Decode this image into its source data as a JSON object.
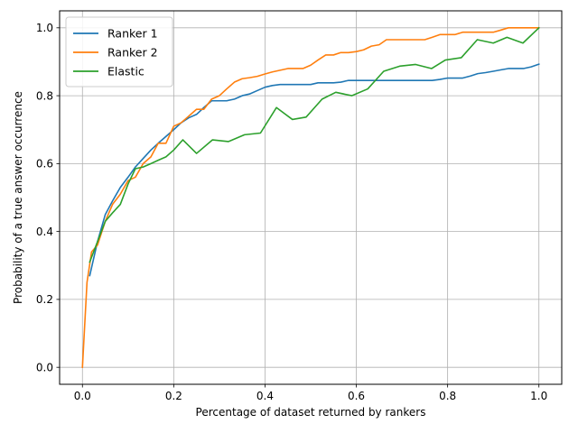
{
  "chart_data": {
    "type": "line",
    "title": "",
    "xlabel": "Percentage of dataset returned by rankers",
    "ylabel": "Probability of a true answer occurrence",
    "xlim": [
      -0.05,
      1.05
    ],
    "ylim": [
      -0.05,
      1.05
    ],
    "xticks": [
      0.0,
      0.2,
      0.4,
      0.6,
      0.8,
      1.0
    ],
    "yticks": [
      0.0,
      0.2,
      0.4,
      0.6,
      0.8,
      1.0
    ],
    "tick_labels_x": [
      "0.0",
      "0.2",
      "0.4",
      "0.6",
      "0.8",
      "1.0"
    ],
    "tick_labels_y": [
      "0.0",
      "0.2",
      "0.4",
      "0.6",
      "0.8",
      "1.0"
    ],
    "grid": true,
    "legend": "top-left",
    "series": [
      {
        "name": "Ranker 1",
        "color": "#1f77b4",
        "x": [
          0.016,
          0.033,
          0.05,
          0.066,
          0.083,
          0.1,
          0.116,
          0.133,
          0.15,
          0.166,
          0.183,
          0.2,
          0.216,
          0.233,
          0.25,
          0.266,
          0.283,
          0.3,
          0.316,
          0.333,
          0.35,
          0.366,
          0.383,
          0.4,
          0.416,
          0.433,
          0.45,
          0.466,
          0.483,
          0.5,
          0.516,
          0.533,
          0.55,
          0.566,
          0.583,
          0.6,
          0.616,
          0.633,
          0.65,
          0.666,
          0.683,
          0.7,
          0.716,
          0.733,
          0.75,
          0.766,
          0.783,
          0.8,
          0.816,
          0.833,
          0.85,
          0.866,
          0.883,
          0.9,
          0.916,
          0.933,
          0.95,
          0.966,
          0.983,
          1.0
        ],
        "y": [
          0.27,
          0.37,
          0.45,
          0.49,
          0.53,
          0.56,
          0.59,
          0.615,
          0.64,
          0.66,
          0.68,
          0.7,
          0.72,
          0.735,
          0.745,
          0.765,
          0.785,
          0.785,
          0.785,
          0.79,
          0.8,
          0.805,
          0.815,
          0.825,
          0.83,
          0.833,
          0.833,
          0.833,
          0.833,
          0.833,
          0.838,
          0.838,
          0.838,
          0.84,
          0.845,
          0.845,
          0.845,
          0.845,
          0.845,
          0.845,
          0.845,
          0.845,
          0.845,
          0.845,
          0.845,
          0.845,
          0.848,
          0.852,
          0.852,
          0.852,
          0.858,
          0.865,
          0.868,
          0.872,
          0.876,
          0.88,
          0.88,
          0.88,
          0.885,
          0.893
        ]
      },
      {
        "name": "Ranker 2",
        "color": "#ff7f0e",
        "x": [
          0.0,
          0.01,
          0.02,
          0.033,
          0.05,
          0.066,
          0.083,
          0.1,
          0.116,
          0.133,
          0.15,
          0.166,
          0.183,
          0.2,
          0.216,
          0.233,
          0.25,
          0.266,
          0.283,
          0.3,
          0.316,
          0.333,
          0.35,
          0.366,
          0.383,
          0.4,
          0.416,
          0.433,
          0.45,
          0.466,
          0.483,
          0.5,
          0.516,
          0.533,
          0.55,
          0.566,
          0.583,
          0.6,
          0.616,
          0.633,
          0.65,
          0.666,
          0.683,
          0.7,
          0.716,
          0.733,
          0.75,
          0.766,
          0.783,
          0.8,
          0.816,
          0.833,
          0.85,
          0.866,
          0.883,
          0.9,
          0.916,
          0.933,
          0.95,
          0.966,
          0.983,
          1.0
        ],
        "y": [
          0.0,
          0.25,
          0.34,
          0.36,
          0.43,
          0.48,
          0.51,
          0.55,
          0.56,
          0.6,
          0.62,
          0.66,
          0.66,
          0.71,
          0.72,
          0.74,
          0.76,
          0.76,
          0.79,
          0.8,
          0.82,
          0.84,
          0.85,
          0.853,
          0.857,
          0.864,
          0.87,
          0.875,
          0.88,
          0.88,
          0.88,
          0.89,
          0.905,
          0.92,
          0.92,
          0.927,
          0.927,
          0.93,
          0.935,
          0.946,
          0.95,
          0.965,
          0.965,
          0.965,
          0.965,
          0.965,
          0.965,
          0.972,
          0.98,
          0.98,
          0.98,
          0.987,
          0.987,
          0.987,
          0.987,
          0.987,
          0.993,
          1.0,
          1.0,
          1.0,
          1.0,
          1.0
        ]
      },
      {
        "name": "Elastic",
        "color": "#2ca02c",
        "x": [
          0.016,
          0.033,
          0.05,
          0.066,
          0.083,
          0.1,
          0.116,
          0.133,
          0.15,
          0.166,
          0.183,
          0.2,
          0.22,
          0.25,
          0.285,
          0.32,
          0.355,
          0.39,
          0.425,
          0.46,
          0.49,
          0.525,
          0.555,
          0.59,
          0.625,
          0.66,
          0.695,
          0.73,
          0.765,
          0.795,
          0.83,
          0.865,
          0.9,
          0.93,
          0.965,
          1.0
        ],
        "y": [
          0.31,
          0.37,
          0.43,
          0.455,
          0.48,
          0.54,
          0.585,
          0.59,
          0.6,
          0.61,
          0.62,
          0.64,
          0.67,
          0.63,
          0.67,
          0.665,
          0.685,
          0.69,
          0.765,
          0.73,
          0.737,
          0.79,
          0.81,
          0.8,
          0.82,
          0.872,
          0.887,
          0.892,
          0.88,
          0.905,
          0.912,
          0.965,
          0.955,
          0.972,
          0.955,
          1.0
        ]
      }
    ]
  }
}
